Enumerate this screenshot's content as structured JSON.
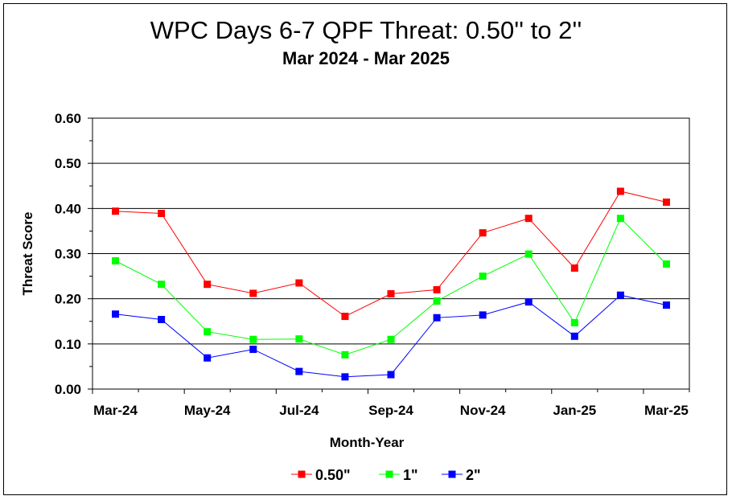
{
  "chart_data": {
    "type": "line",
    "title": "WPC Days 6-7 QPF Threat:  0.50'' to 2''",
    "subtitle": "Mar 2024 - Mar 2025",
    "xlabel": "Month-Year",
    "ylabel": "Threat Score",
    "ylim": [
      0,
      0.6
    ],
    "yticks": [
      "0.00",
      "0.10",
      "0.20",
      "0.30",
      "0.40",
      "0.50",
      "0.60"
    ],
    "x": [
      "Mar-24",
      "Apr-24",
      "May-24",
      "Jun-24",
      "Jul-24",
      "Aug-24",
      "Sep-24",
      "Oct-24",
      "Nov-24",
      "Dec-24",
      "Jan-25",
      "Feb-25",
      "Mar-25"
    ],
    "xtick_labels": [
      "Mar-24",
      "May-24",
      "Jul-24",
      "Sep-24",
      "Nov-24",
      "Jan-25",
      "Mar-25"
    ],
    "grid": "horizontal",
    "legend": "bottom-center",
    "series": [
      {
        "name": "0.50\"",
        "color": "#ff0000",
        "values": [
          0.394,
          0.389,
          0.232,
          0.212,
          0.235,
          0.161,
          0.211,
          0.22,
          0.346,
          0.378,
          0.268,
          0.438,
          0.414
        ]
      },
      {
        "name": "1\"",
        "color": "#00ff00",
        "values": [
          0.284,
          0.232,
          0.127,
          0.11,
          0.111,
          0.076,
          0.11,
          0.195,
          0.25,
          0.299,
          0.147,
          0.378,
          0.277
        ]
      },
      {
        "name": "2\"",
        "color": "#0000ff",
        "values": [
          0.166,
          0.154,
          0.069,
          0.088,
          0.039,
          0.027,
          0.032,
          0.158,
          0.164,
          0.193,
          0.117,
          0.208,
          0.186
        ]
      }
    ]
  }
}
